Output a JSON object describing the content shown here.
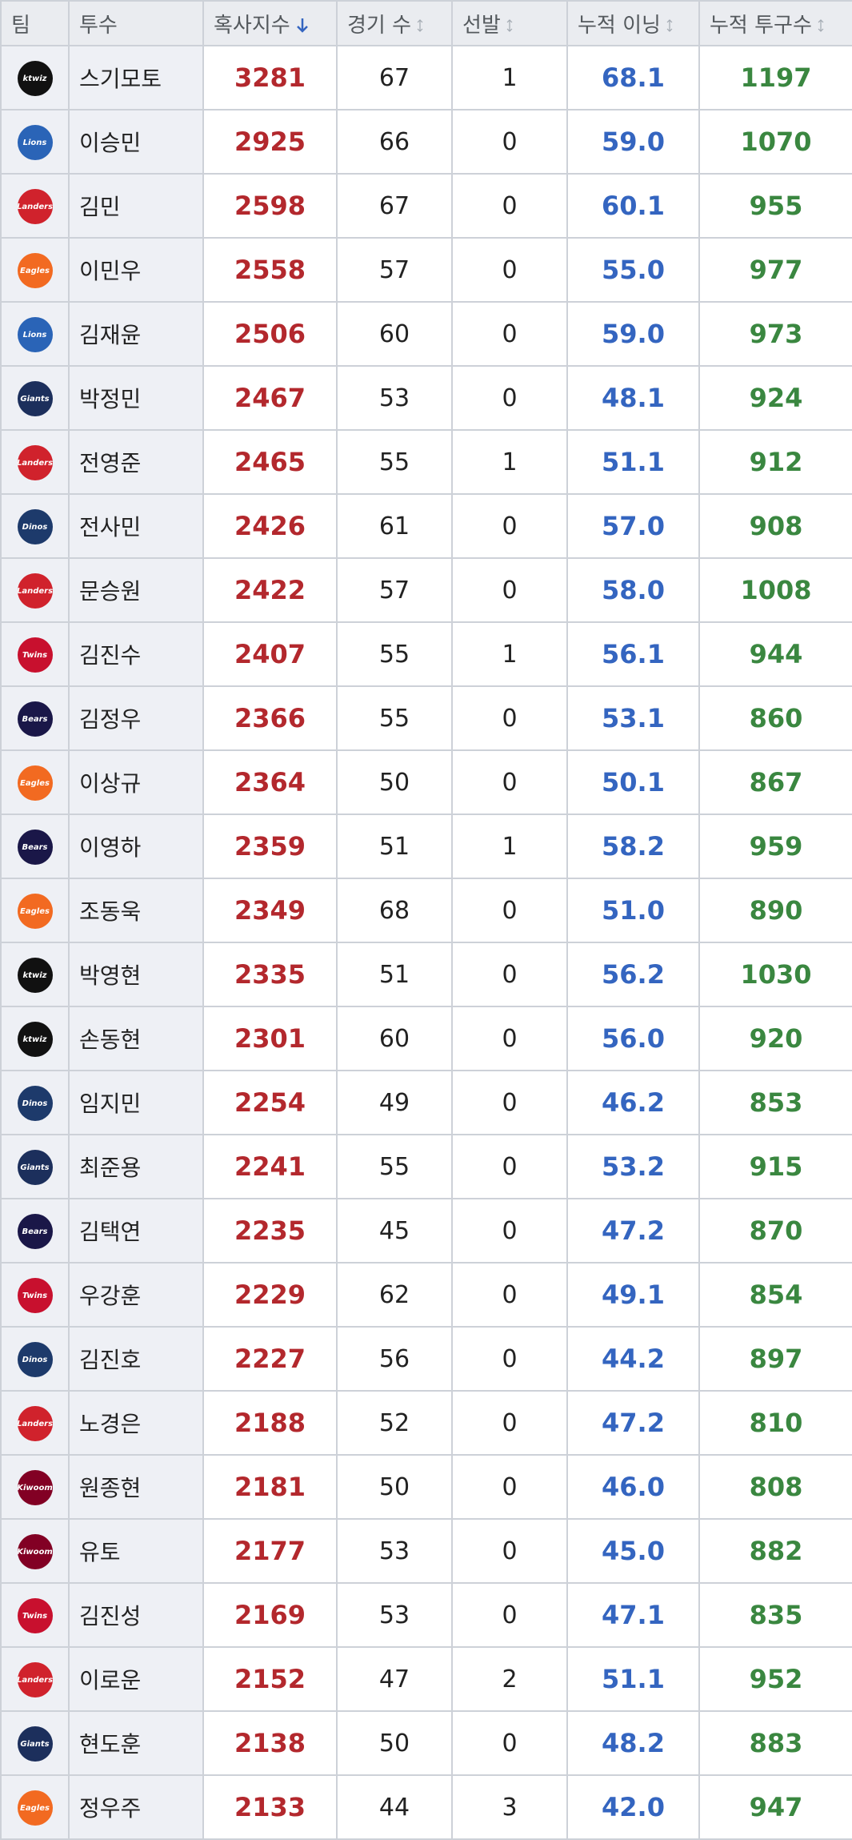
{
  "table": {
    "headers": [
      "팀",
      "투수",
      "혹사지수",
      "경기 수",
      "선발",
      "누적 이닝",
      "누적 투구수"
    ],
    "rows": [
      [
        "ktwiz",
        "스기모토",
        "3281",
        "67",
        "1",
        "68.1",
        "1197"
      ],
      [
        "Lions",
        "이승민",
        "2925",
        "66",
        "0",
        "59.0",
        "1070"
      ],
      [
        "Landers",
        "김민",
        "2598",
        "67",
        "0",
        "60.1",
        "955"
      ],
      [
        "Eagles",
        "이민우",
        "2558",
        "57",
        "0",
        "55.0",
        "977"
      ],
      [
        "Lions",
        "김재윤",
        "2506",
        "60",
        "0",
        "59.0",
        "973"
      ],
      [
        "Giants",
        "박정민",
        "2467",
        "53",
        "0",
        "48.1",
        "924"
      ],
      [
        "Landers",
        "전영준",
        "2465",
        "55",
        "1",
        "51.1",
        "912"
      ],
      [
        "Dinos",
        "전사민",
        "2426",
        "61",
        "0",
        "57.0",
        "908"
      ],
      [
        "Landers",
        "문승원",
        "2422",
        "57",
        "0",
        "58.0",
        "1008"
      ],
      [
        "Twins",
        "김진수",
        "2407",
        "55",
        "1",
        "56.1",
        "944"
      ],
      [
        "Bears",
        "김정우",
        "2366",
        "55",
        "0",
        "53.1",
        "860"
      ],
      [
        "Eagles",
        "이상규",
        "2364",
        "50",
        "0",
        "50.1",
        "867"
      ],
      [
        "Bears",
        "이영하",
        "2359",
        "51",
        "1",
        "58.2",
        "959"
      ],
      [
        "Eagles",
        "조동욱",
        "2349",
        "68",
        "0",
        "51.0",
        "890"
      ],
      [
        "ktwiz",
        "박영현",
        "2335",
        "51",
        "0",
        "56.2",
        "1030"
      ],
      [
        "ktwiz",
        "손동현",
        "2301",
        "60",
        "0",
        "56.0",
        "920"
      ],
      [
        "Dinos",
        "임지민",
        "2254",
        "49",
        "0",
        "46.2",
        "853"
      ],
      [
        "Giants",
        "최준용",
        "2241",
        "55",
        "0",
        "53.2",
        "915"
      ],
      [
        "Bears",
        "김택연",
        "2235",
        "45",
        "0",
        "47.2",
        "870"
      ],
      [
        "Twins",
        "우강훈",
        "2229",
        "62",
        "0",
        "49.1",
        "854"
      ],
      [
        "Dinos",
        "김진호",
        "2227",
        "56",
        "0",
        "44.2",
        "897"
      ],
      [
        "Landers",
        "노경은",
        "2188",
        "52",
        "0",
        "47.2",
        "810"
      ],
      [
        "Kiwoom",
        "원종현",
        "2181",
        "50",
        "0",
        "46.0",
        "808"
      ],
      [
        "Kiwoom",
        "유토",
        "2177",
        "53",
        "0",
        "45.0",
        "882"
      ],
      [
        "Twins",
        "김진성",
        "2169",
        "53",
        "0",
        "47.1",
        "835"
      ],
      [
        "Landers",
        "이로운",
        "2152",
        "47",
        "2",
        "51.1",
        "952"
      ],
      [
        "Giants",
        "현도훈",
        "2138",
        "50",
        "0",
        "48.2",
        "883"
      ],
      [
        "Eagles",
        "정우주",
        "2133",
        "44",
        "3",
        "42.0",
        "947"
      ]
    ]
  }
}
